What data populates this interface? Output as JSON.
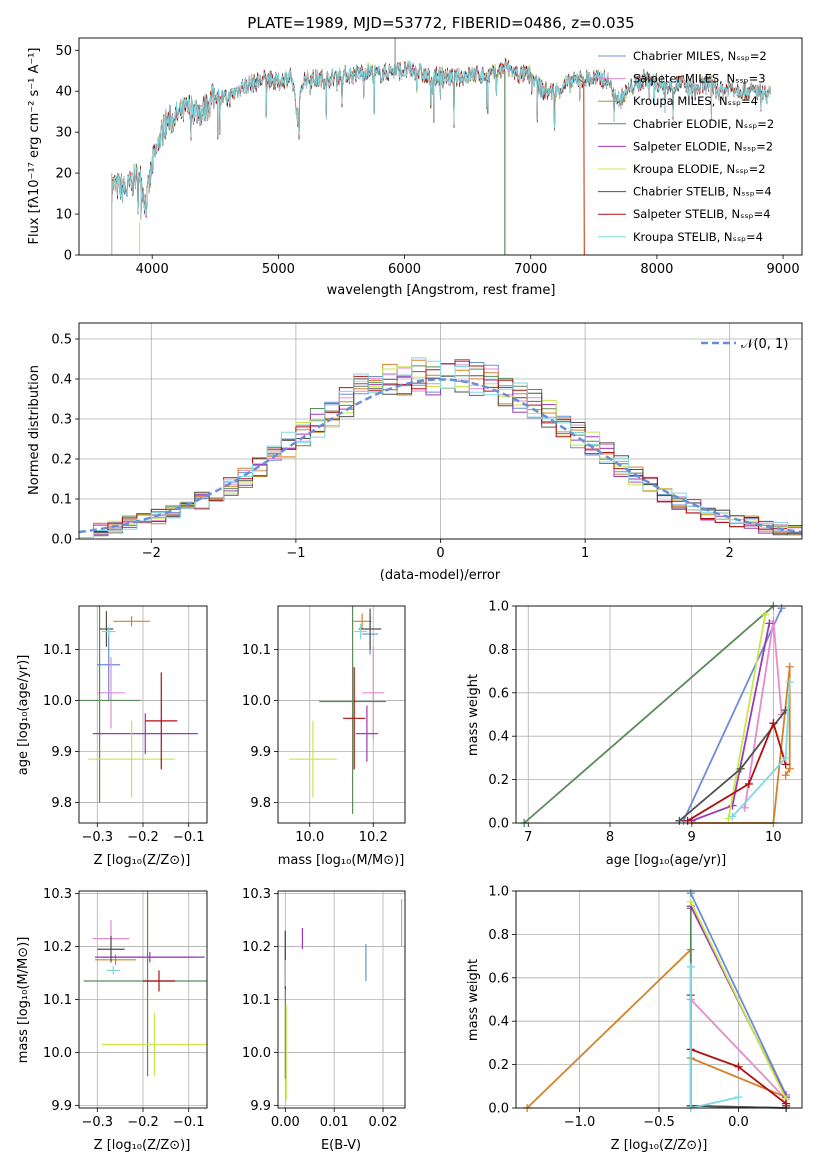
{
  "colors": [
    "#6a8fd8",
    "#e88ad0",
    "#d4822a",
    "#5a8a5a",
    "#9a3ab8",
    "#c8e84a",
    "#505050",
    "#b01010",
    "#80d8e0"
  ],
  "spectrum": {
    "title": "PLATE=1989, MJD=53772, FIBERID=0486, z=0.035",
    "xlabel": "wavelength [Angstrom, rest frame]",
    "ylabel": "Flux [fλ10⁻¹⁷ erg cm⁻² s⁻¹ A⁻¹]",
    "xticks": [
      "4000",
      "5000",
      "6000",
      "7000",
      "8000",
      "9000"
    ],
    "yticks": [
      "0",
      "10",
      "20",
      "30",
      "40",
      "50"
    ],
    "legend": [
      "Chabrier MILES, Nₛₛₚ=2",
      "Salpeter MILES, Nₛₛₚ=3",
      "Kroupa MILES, Nₛₛₚ=4",
      "Chabrier ELODIE, Nₛₛₚ=2",
      "Salpeter ELODIE, Nₛₛₚ=2",
      "Kroupa ELODIE, Nₛₛₚ=2",
      "Chabrier STELIB, Nₛₛₚ=4",
      "Salpeter STELIB, Nₛₛₚ=4",
      "Kroupa STELIB, Nₛₛₚ=4"
    ]
  },
  "residuals": {
    "xlabel": "(data-model)/error",
    "ylabel": "Normed distribution",
    "xticks": [
      "−2",
      "−1",
      "0",
      "1",
      "2"
    ],
    "yticks": [
      "0.0",
      "0.1",
      "0.2",
      "0.3",
      "0.4",
      "0.5"
    ],
    "legend": "𝒩(0, 1)"
  },
  "panels": {
    "zage": {
      "xlabel": "Z [log₁₀(Z/Z⊙)]",
      "ylabel": "age  [log₁₀(age/yr)]",
      "xticks": [
        "−0.3",
        "−0.2",
        "−0.1"
      ],
      "yticks": [
        "9.8",
        "9.9",
        "10.0",
        "10.1"
      ]
    },
    "massage": {
      "xlabel": "mass [log₁₀(M/M⊙)]",
      "xticks": [
        "10.0",
        "10.2"
      ],
      "yticks": [
        "9.8",
        "9.9",
        "10.0",
        "10.1"
      ]
    },
    "agew": {
      "xlabel": "age  [log₁₀(age/yr)]",
      "ylabel": "mass weight",
      "xticks": [
        "7",
        "8",
        "9",
        "10"
      ],
      "yticks": [
        "0.0",
        "0.2",
        "0.4",
        "0.6",
        "0.8",
        "1.0"
      ]
    },
    "zmass": {
      "xlabel": "Z [log₁₀(Z/Z⊙)]",
      "ylabel": "mass [log₁₀(M/M⊙)]",
      "xticks": [
        "−0.3",
        "−0.2",
        "−0.1"
      ],
      "yticks": [
        "9.9",
        "10.0",
        "10.1",
        "10.2",
        "10.3"
      ]
    },
    "ebvmass": {
      "xlabel": "E(B-V)",
      "xticks": [
        "0.00",
        "0.01",
        "0.02"
      ],
      "yticks": [
        "9.9",
        "10.0",
        "10.1",
        "10.2",
        "10.3"
      ]
    },
    "zw": {
      "xlabel": "Z [log₁₀(Z/Z⊙)]",
      "ylabel": "mass weight",
      "xticks": [
        "−1.0",
        "−0.5",
        "0.0"
      ],
      "yticks": [
        "0.0",
        "0.2",
        "0.4",
        "0.6",
        "0.8",
        "1.0"
      ]
    }
  },
  "chart_data": [
    {
      "type": "line",
      "title": "PLATE=1989, MJD=53772, FIBERID=0486, z=0.035",
      "xlabel": "wavelength [Angstrom, rest frame]",
      "ylabel": "Flux [fλ10⁻¹⁷ erg cm⁻² s⁻¹ A⁻¹]",
      "xlim": [
        3420,
        9150
      ],
      "ylim": [
        0,
        53
      ],
      "x": [
        3680,
        3800,
        3900,
        3950,
        4000,
        4100,
        4200,
        4300,
        4400,
        4500,
        4600,
        4700,
        4800,
        4900,
        5000,
        5100,
        5150,
        5200,
        5300,
        5400,
        5500,
        5600,
        5700,
        5800,
        5900,
        6000,
        6100,
        6200,
        6300,
        6400,
        6500,
        6600,
        6700,
        6800,
        6900,
        7000,
        7100,
        7200,
        7300,
        7400,
        7500,
        7600,
        7700,
        7800,
        7900,
        8000,
        8100,
        8200,
        8300,
        8400,
        8500,
        8600,
        8700,
        8800,
        8900
      ],
      "y": [
        17,
        16,
        20,
        12,
        22,
        32,
        34,
        36,
        35,
        39,
        38,
        41,
        42,
        43,
        42,
        44,
        34,
        43,
        43,
        43,
        44,
        44,
        45,
        44,
        45,
        45,
        45,
        43,
        44,
        43,
        44,
        44,
        44,
        46,
        44,
        44,
        40,
        40,
        42,
        43,
        43,
        43,
        38,
        41,
        43,
        42,
        41,
        42,
        40,
        42,
        40,
        41,
        40,
        40,
        39
      ],
      "series_names": [
        "Chabrier MILES, Nₛₛₚ=2",
        "Salpeter MILES, Nₛₛₚ=3",
        "Kroupa MILES, Nₛₛₚ=4",
        "Chabrier ELODIE, Nₛₛₚ=2",
        "Salpeter ELODIE, Nₛₛₚ=2",
        "Kroupa ELODIE, Nₛₛₚ=2",
        "Chabrier STELIB, Nₛₛₚ=4",
        "Salpeter STELIB, Nₛₛₚ=4",
        "Kroupa STELIB, Nₛₛₚ=4"
      ]
    },
    {
      "type": "area",
      "xlabel": "(data-model)/error",
      "ylabel": "Normed distribution",
      "xlim": [
        -2.5,
        2.5
      ],
      "ylim": [
        0,
        0.54
      ],
      "bin_width": 0.1,
      "bin_centers": [
        -2.45,
        -2.35,
        -2.25,
        -2.15,
        -2.05,
        -1.95,
        -1.85,
        -1.75,
        -1.65,
        -1.55,
        -1.45,
        -1.35,
        -1.25,
        -1.15,
        -1.05,
        -0.95,
        -0.85,
        -0.75,
        -0.65,
        -0.55,
        -0.45,
        -0.35,
        -0.25,
        -0.15,
        -0.05,
        0.05,
        0.15,
        0.25,
        0.35,
        0.45,
        0.55,
        0.65,
        0.75,
        0.85,
        0.95,
        1.05,
        1.15,
        1.25,
        1.35,
        1.45,
        1.55,
        1.65,
        1.75,
        1.85,
        1.95,
        2.05,
        2.15,
        2.25,
        2.35,
        2.45
      ],
      "hist_mean": [
        0.02,
        0.025,
        0.03,
        0.04,
        0.045,
        0.055,
        0.065,
        0.08,
        0.095,
        0.11,
        0.13,
        0.155,
        0.185,
        0.21,
        0.235,
        0.26,
        0.29,
        0.315,
        0.345,
        0.37,
        0.385,
        0.395,
        0.405,
        0.41,
        0.405,
        0.41,
        0.405,
        0.4,
        0.39,
        0.375,
        0.355,
        0.335,
        0.315,
        0.29,
        0.26,
        0.235,
        0.21,
        0.185,
        0.155,
        0.13,
        0.11,
        0.095,
        0.08,
        0.065,
        0.055,
        0.045,
        0.04,
        0.03,
        0.025,
        0.02
      ],
      "spread": 0.05,
      "reference_curve": "𝒩(0, 1)"
    },
    {
      "type": "scatter",
      "xlabel": "Z [log₁₀(Z/Z⊙)]",
      "ylabel": "age  [log₁₀(age/yr)]",
      "xlim": [
        -0.34,
        -0.06
      ],
      "ylim": [
        9.76,
        10.185
      ],
      "points": [
        {
          "x": -0.275,
          "y": 10.07,
          "xerr": 0.025,
          "yerr": 0.07
        },
        {
          "x": -0.27,
          "y": 10.015,
          "xerr": 0.03,
          "yerr": 0.07
        },
        {
          "x": -0.225,
          "y": 10.155,
          "xerr": 0.04,
          "yerr": 0.01
        },
        {
          "x": -0.295,
          "y": 10.0,
          "xerr": 0.09,
          "yerr": 0.2
        },
        {
          "x": -0.195,
          "y": 9.935,
          "xerr": 0.115,
          "yerr": 0.04
        },
        {
          "x": -0.225,
          "y": 9.885,
          "xerr": 0.095,
          "yerr": 0.075
        },
        {
          "x": -0.28,
          "y": 10.14,
          "xerr": 0.015,
          "yerr": 0.035
        },
        {
          "x": -0.16,
          "y": 9.96,
          "xerr": 0.035,
          "yerr": 0.095
        },
        {
          "x": -0.275,
          "y": 10.135,
          "xerr": 0.015,
          "yerr": 0.01
        }
      ]
    },
    {
      "type": "scatter",
      "xlabel": "mass [log₁₀(M/M⊙)]",
      "ylabel": "",
      "xlim": [
        9.9,
        10.3
      ],
      "ylim": [
        9.76,
        10.185
      ],
      "points": [
        {
          "x": 10.19,
          "y": 10.13,
          "xerr": 0.025,
          "yerr": 0.04
        },
        {
          "x": 10.2,
          "y": 10.015,
          "xerr": 0.035,
          "yerr": 0.09
        },
        {
          "x": 10.165,
          "y": 10.155,
          "xerr": 0.03,
          "yerr": 0.015
        },
        {
          "x": 10.135,
          "y": 9.998,
          "xerr": 0.105,
          "yerr": 0.22
        },
        {
          "x": 10.18,
          "y": 9.935,
          "xerr": 0.035,
          "yerr": 0.055
        },
        {
          "x": 10.01,
          "y": 9.885,
          "xerr": 0.075,
          "yerr": 0.075
        },
        {
          "x": 10.19,
          "y": 10.14,
          "xerr": 0.035,
          "yerr": 0.04
        },
        {
          "x": 10.14,
          "y": 9.965,
          "xerr": 0.035,
          "yerr": 0.1
        },
        {
          "x": 10.16,
          "y": 10.135,
          "xerr": 0.02,
          "yerr": 0.015
        }
      ]
    },
    {
      "type": "line",
      "xlabel": "age  [log₁₀(age/yr)]",
      "ylabel": "mass weight",
      "xlim": [
        6.85,
        10.35
      ],
      "ylim": [
        0,
        1
      ],
      "series": [
        {
          "x": [
            8.9,
            10.1
          ],
          "y": [
            0.01,
            0.99
          ]
        },
        {
          "x": [
            9.65,
            10.0,
            10.1
          ],
          "y": [
            0.07,
            0.93,
            0.5
          ]
        },
        {
          "x": [
            9.0,
            10.0,
            10.2,
            10.2,
            10.15
          ],
          "y": [
            0.0,
            0.0,
            0.72,
            0.25,
            0.22
          ]
        },
        {
          "x": [
            6.95,
            10.0
          ],
          "y": [
            0.0,
            1.0
          ]
        },
        {
          "x": [
            9.0,
            9.5,
            9.95
          ],
          "y": [
            0.01,
            0.08,
            0.92
          ]
        },
        {
          "x": [
            9.45,
            9.9
          ],
          "y": [
            0.02,
            0.96
          ]
        },
        {
          "x": [
            8.85,
            9.6,
            10.15
          ],
          "y": [
            0.01,
            0.25,
            0.52
          ]
        },
        {
          "x": [
            8.95,
            9.7,
            10.0,
            10.15
          ],
          "y": [
            0.01,
            0.18,
            0.46,
            0.27
          ]
        },
        {
          "x": [
            9.5,
            10.15,
            10.2
          ],
          "y": [
            0.03,
            0.3,
            0.65
          ]
        }
      ]
    },
    {
      "type": "scatter",
      "xlabel": "Z [log₁₀(Z/Z⊙)]",
      "ylabel": "mass [log₁₀(M/M⊙)]",
      "xlim": [
        -0.34,
        -0.06
      ],
      "ylim": [
        9.895,
        10.305
      ],
      "points": [
        {
          "x": -0.19,
          "y": 10.18,
          "xerr": 0.1,
          "yerr": 0.003
        },
        {
          "x": -0.27,
          "y": 10.215,
          "xerr": 0.04,
          "yerr": 0.035
        },
        {
          "x": -0.26,
          "y": 10.175,
          "xerr": 0.045,
          "yerr": 0.01
        },
        {
          "x": -0.19,
          "y": 10.135,
          "xerr": 0.14,
          "yerr": 0.18
        },
        {
          "x": -0.185,
          "y": 10.18,
          "xerr": 0.12,
          "yerr": 0.01
        },
        {
          "x": -0.175,
          "y": 10.015,
          "xerr": 0.115,
          "yerr": 0.06
        },
        {
          "x": -0.27,
          "y": 10.195,
          "xerr": 0.03,
          "yerr": 0.025
        },
        {
          "x": -0.165,
          "y": 10.135,
          "xerr": 0.035,
          "yerr": 0.02
        },
        {
          "x": -0.265,
          "y": 10.155,
          "xerr": 0.015,
          "yerr": 0.008
        }
      ]
    },
    {
      "type": "scatter",
      "xlabel": "E(B-V)",
      "ylabel": "",
      "xlim": [
        -0.0015,
        0.0245
      ],
      "ylim": [
        9.895,
        10.305
      ],
      "points": [
        {
          "x": 0.0165,
          "y": 10.17,
          "yerr": 0.035
        },
        {
          "x": 0.0238,
          "y": 10.245,
          "yerr": 0.045
        },
        {
          "x": 0.0,
          "y": 10.17,
          "yerr": 0.035
        },
        {
          "x": 0.0,
          "y": 10.09,
          "yerr": 0.14
        },
        {
          "x": 0.0035,
          "y": 10.215,
          "yerr": 0.02
        },
        {
          "x": 0.0002,
          "y": 10.0,
          "yerr": 0.09
        },
        {
          "x": 0.0,
          "y": 10.205,
          "yerr": 0.025
        },
        {
          "x": 0.0,
          "y": 10.15,
          "yerr": 0.03
        },
        {
          "x": 0.0,
          "y": 10.15,
          "yerr": 0.025
        }
      ]
    },
    {
      "type": "line",
      "xlabel": "Z [log₁₀(Z/Z⊙)]",
      "ylabel": "mass weight",
      "xlim": [
        -1.4,
        0.4
      ],
      "ylim": [
        0,
        1
      ],
      "series": [
        {
          "x": [
            -0.3,
            0.3,
            0.3
          ],
          "y": [
            0.99,
            0.06,
            0.01
          ]
        },
        {
          "x": [
            -0.3,
            0.3,
            0.3
          ],
          "y": [
            0.5,
            0.04,
            0.01
          ]
        },
        {
          "x": [
            -1.33,
            -0.3,
            -0.3,
            0.3,
            0.3
          ],
          "y": [
            0.0,
            0.73,
            0.23,
            0.05,
            0.0
          ]
        },
        {
          "x": [
            -0.3,
            -0.3,
            0.3
          ],
          "y": [
            0.92,
            0.01,
            0.0
          ]
        },
        {
          "x": [
            -0.3,
            0.3
          ],
          "y": [
            0.93,
            0.05
          ]
        },
        {
          "x": [
            -0.3,
            0.3
          ],
          "y": [
            0.95,
            0.04
          ]
        },
        {
          "x": [
            -0.3,
            -0.3,
            0.3,
            0.3
          ],
          "y": [
            0.52,
            0.01,
            0.0,
            0.01
          ]
        },
        {
          "x": [
            -0.3,
            0.0,
            0.3
          ],
          "y": [
            0.27,
            0.19,
            0.02
          ]
        },
        {
          "x": [
            -0.3,
            -0.3,
            0.0
          ],
          "y": [
            0.65,
            0.0,
            0.05
          ]
        }
      ]
    }
  ]
}
